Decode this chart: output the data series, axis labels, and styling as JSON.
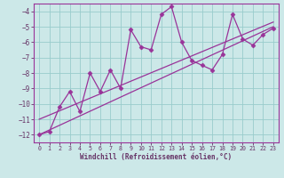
{
  "title": "",
  "xlabel": "Windchill (Refroidissement éolien,°C)",
  "background_color": "#cce8e8",
  "line_color": "#993399",
  "grid_color": "#99cccc",
  "text_color": "#663366",
  "data_x": [
    0,
    1,
    2,
    3,
    4,
    5,
    6,
    7,
    8,
    9,
    10,
    11,
    12,
    13,
    14,
    15,
    16,
    17,
    18,
    19,
    20,
    21,
    22,
    23
  ],
  "data_y": [
    -12.0,
    -11.8,
    -10.2,
    -9.2,
    -10.5,
    -8.0,
    -9.2,
    -7.8,
    -9.0,
    -5.2,
    -6.3,
    -6.5,
    -4.2,
    -3.7,
    -6.0,
    -7.2,
    -7.5,
    -7.8,
    -6.8,
    -4.2,
    -5.8,
    -6.2,
    -5.5,
    -5.1
  ],
  "trend1_x": [
    0,
    23
  ],
  "trend1_y": [
    -12.0,
    -5.0
  ],
  "trend2_x": [
    0,
    23
  ],
  "trend2_y": [
    -11.0,
    -4.7
  ],
  "xlim": [
    -0.5,
    23.5
  ],
  "ylim": [
    -12.5,
    -3.5
  ],
  "xticks": [
    0,
    1,
    2,
    3,
    4,
    5,
    6,
    7,
    8,
    9,
    10,
    11,
    12,
    13,
    14,
    15,
    16,
    17,
    18,
    19,
    20,
    21,
    22,
    23
  ],
  "yticks": [
    -12,
    -11,
    -10,
    -9,
    -8,
    -7,
    -6,
    -5,
    -4
  ]
}
